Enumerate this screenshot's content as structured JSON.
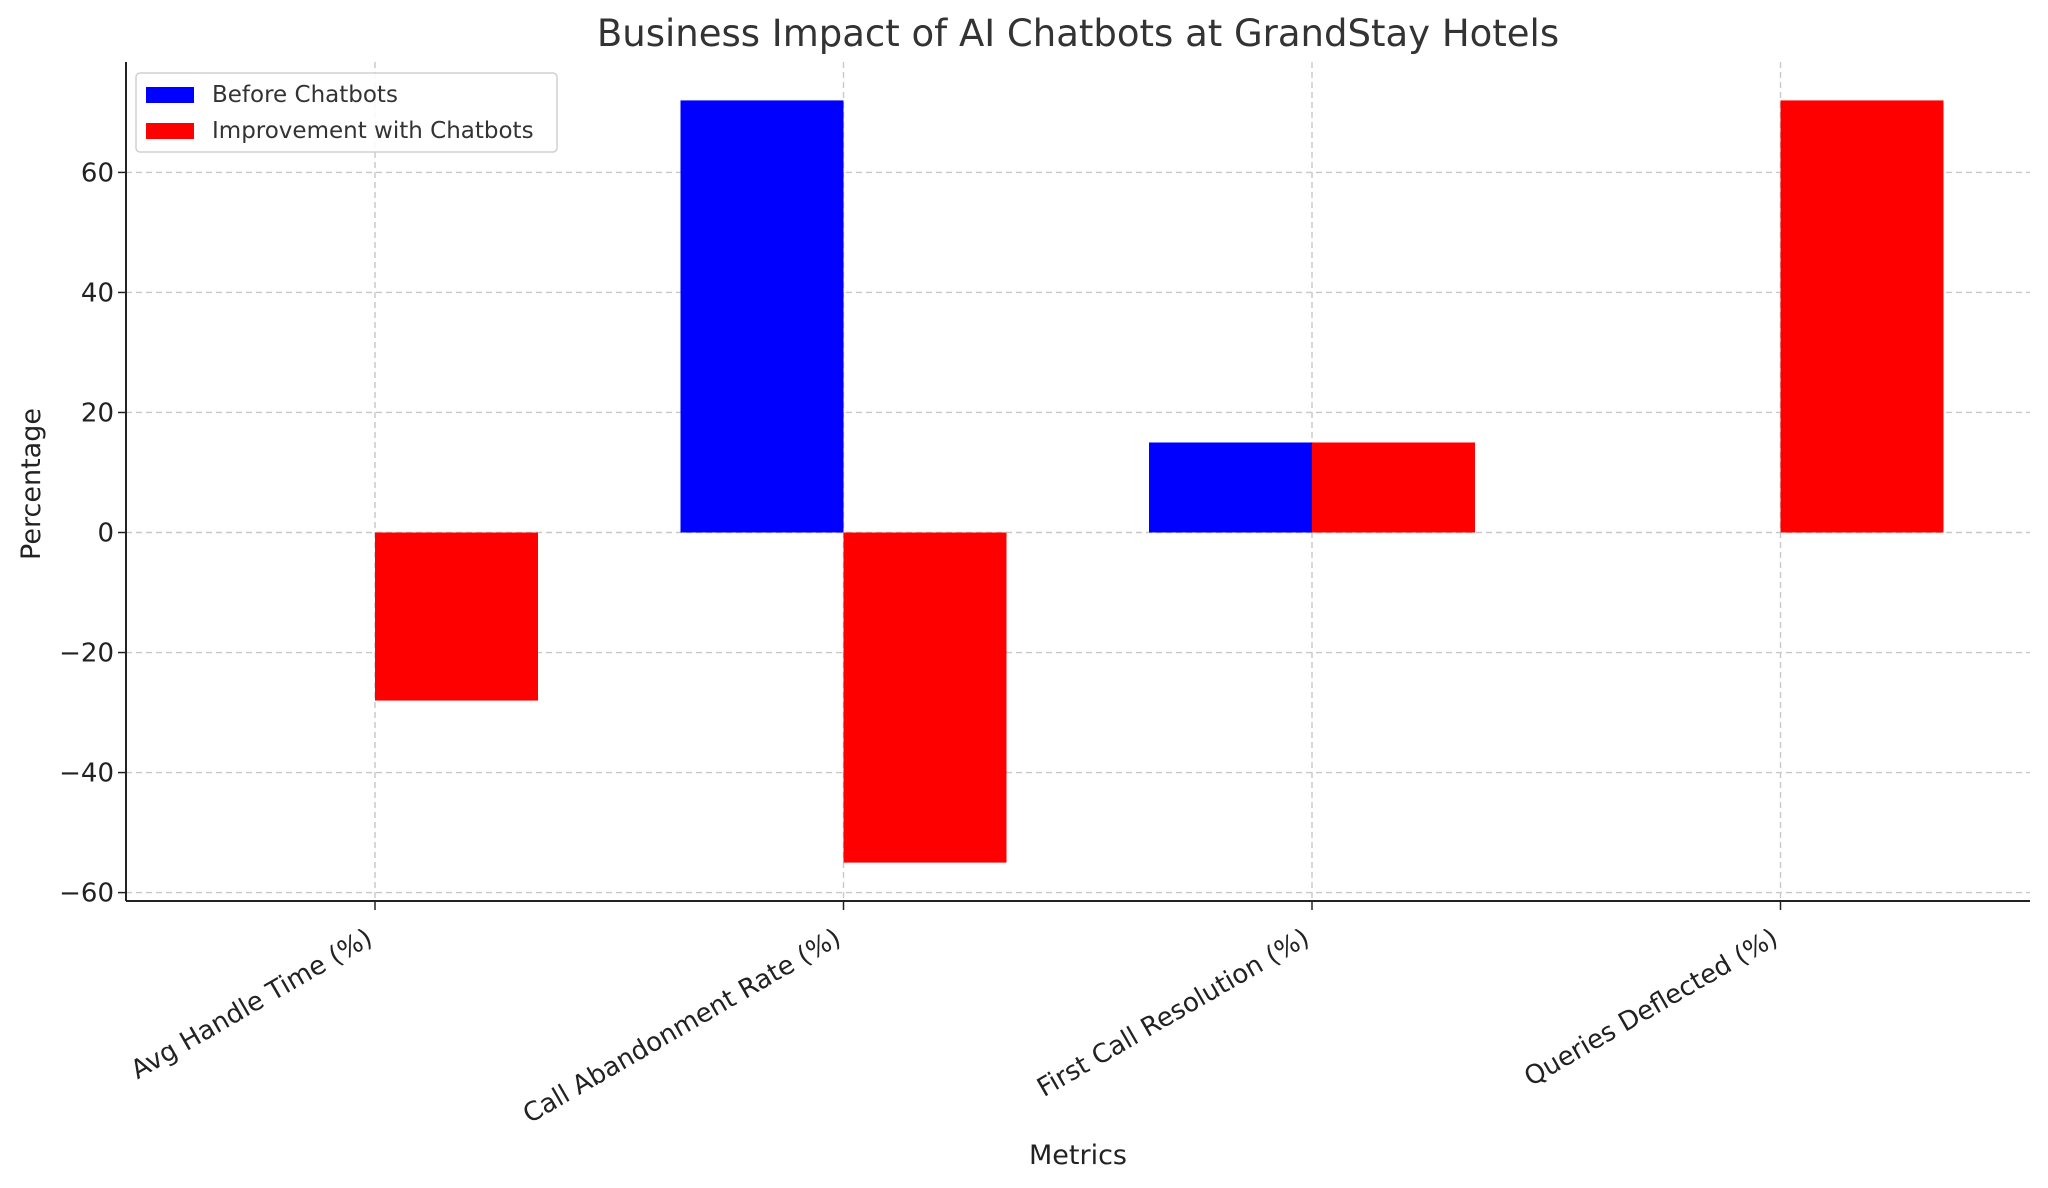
{
  "chart_data": {
    "type": "bar",
    "title": "Business Impact of AI Chatbots at GrandStay Hotels",
    "xlabel": "Metrics",
    "ylabel": "Percentage",
    "categories": [
      "Avg Handle Time (%)",
      "Call Abandonment Rate (%)",
      "First Call Resolution (%)",
      "Queries Deflected (%)"
    ],
    "series": [
      {
        "name": "Before Chatbots",
        "color": "#0000ff",
        "values": [
          0,
          72,
          15,
          0
        ]
      },
      {
        "name": "Improvement with Chatbots",
        "color": "#ff0000",
        "values": [
          -28,
          -55,
          15,
          72
        ]
      }
    ],
    "ylim": [
      -61.4,
      78.4
    ],
    "yticks": [
      -60,
      -40,
      -20,
      0,
      20,
      40,
      60
    ],
    "grid": true,
    "legend_position": "top-left"
  }
}
